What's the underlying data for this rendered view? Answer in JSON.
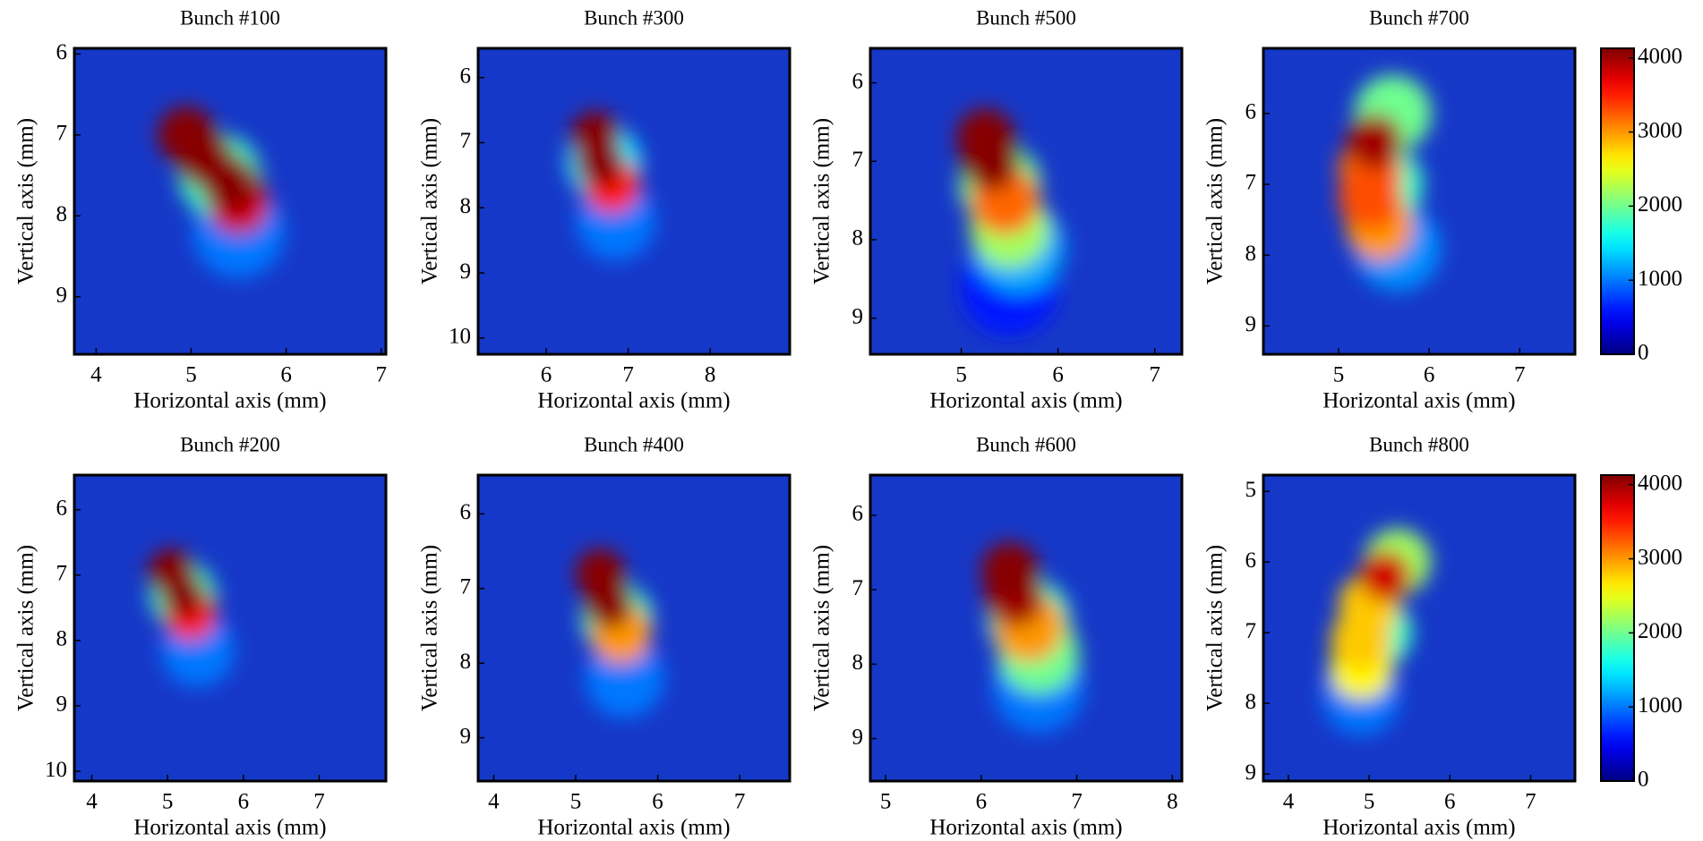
{
  "chart_data": [
    {
      "type": "heatmap",
      "title": "Bunch #100",
      "xlabel": "Horizontal axis (mm)",
      "ylabel": "Vertical axis (mm)",
      "xlim": [
        3.77,
        7.05
      ],
      "ylim": [
        5.93,
        9.71
      ],
      "y_reversed": true,
      "xticks": [
        4,
        5,
        6,
        7
      ],
      "yticks": [
        6,
        7,
        8,
        9
      ],
      "x": [
        5.5,
        5.3,
        5.5,
        4.95,
        5.15,
        5.4
      ],
      "y": [
        8.2,
        7.5,
        7.85,
        7.0,
        7.3,
        7.6
      ],
      "values": [
        1000,
        1800,
        3800,
        4100,
        4100,
        4100
      ],
      "clim": [
        0,
        4130
      ]
    },
    {
      "type": "heatmap",
      "title": "Bunch #300",
      "xlabel": "Horizontal axis (mm)",
      "ylabel": "Vertical axis (mm)",
      "xlim": [
        5.17,
        8.97
      ],
      "ylim": [
        5.55,
        10.25
      ],
      "y_reversed": true,
      "xticks": [
        6,
        7,
        8
      ],
      "yticks": [
        6,
        7,
        8,
        9,
        10
      ],
      "x": [
        6.85,
        6.7,
        6.8,
        6.6,
        6.65
      ],
      "y": [
        8.2,
        7.3,
        7.65,
        6.9,
        7.3
      ],
      "values": [
        1000,
        1500,
        3500,
        4100,
        4100
      ],
      "clim": [
        0,
        4130
      ]
    },
    {
      "type": "heatmap",
      "title": "Bunch #500",
      "xlabel": "Horizontal axis (mm)",
      "ylabel": "Vertical axis (mm)",
      "xlim": [
        4.06,
        7.28
      ],
      "ylim": [
        5.56,
        9.46
      ],
      "y_reversed": true,
      "xticks": [
        5,
        6,
        7
      ],
      "yticks": [
        6,
        7,
        8,
        9
      ],
      "x": [
        5.5,
        5.6,
        5.4,
        5.5,
        5.45,
        5.25,
        5.3
      ],
      "y": [
        8.6,
        8.1,
        7.3,
        7.85,
        7.5,
        6.7,
        7.0
      ],
      "values": [
        600,
        1200,
        2000,
        2200,
        3200,
        4100,
        4100
      ],
      "clim": [
        0,
        4130
      ]
    },
    {
      "type": "heatmap",
      "title": "Bunch #700",
      "xlabel": "Horizontal axis (mm)",
      "ylabel": "Vertical axis (mm)",
      "xlim": [
        4.17,
        7.61
      ],
      "ylim": [
        5.08,
        9.4
      ],
      "y_reversed": true,
      "xticks": [
        5,
        6,
        7
      ],
      "yticks": [
        6,
        7,
        8,
        9
      ],
      "x": [
        5.65,
        5.5,
        5.6,
        5.45,
        5.35,
        5.35,
        5.4
      ],
      "y": [
        7.9,
        7.0,
        6.0,
        7.6,
        6.8,
        7.2,
        6.4
      ],
      "values": [
        1100,
        1800,
        2000,
        3000,
        3200,
        3300,
        4000
      ],
      "clim": [
        0,
        4130
      ],
      "colorbar": {
        "ticks": [
          0,
          1000,
          2000,
          3000,
          4000
        ]
      }
    },
    {
      "type": "heatmap",
      "title": "Bunch #200",
      "xlabel": "Horizontal axis (mm)",
      "ylabel": "Vertical axis (mm)",
      "xlim": [
        3.77,
        7.88
      ],
      "ylim": [
        5.47,
        10.15
      ],
      "y_reversed": true,
      "xticks": [
        4,
        5,
        6,
        7
      ],
      "yticks": [
        6,
        7,
        8,
        9,
        10
      ],
      "x": [
        5.4,
        5.2,
        5.3,
        5.05,
        5.2
      ],
      "y": [
        8.15,
        7.3,
        7.6,
        6.95,
        7.3
      ],
      "values": [
        1000,
        1800,
        3500,
        4100,
        4100
      ],
      "clim": [
        0,
        4130
      ]
    },
    {
      "type": "heatmap",
      "title": "Bunch #400",
      "xlabel": "Horizontal axis (mm)",
      "ylabel": "Vertical axis (mm)",
      "xlim": [
        3.81,
        7.61
      ],
      "ylim": [
        5.48,
        9.58
      ],
      "y_reversed": true,
      "xticks": [
        4,
        5,
        6,
        7
      ],
      "yticks": [
        6,
        7,
        8,
        9
      ],
      "x": [
        5.6,
        5.5,
        5.55,
        5.3,
        5.4
      ],
      "y": [
        8.2,
        7.4,
        7.6,
        6.8,
        7.2
      ],
      "values": [
        1000,
        1800,
        3000,
        4100,
        4100
      ],
      "clim": [
        0,
        4130
      ]
    },
    {
      "type": "heatmap",
      "title": "Bunch #600",
      "xlabel": "Horizontal axis (mm)",
      "ylabel": "Vertical axis (mm)",
      "xlim": [
        4.84,
        8.1
      ],
      "ylim": [
        5.46,
        9.57
      ],
      "y_reversed": true,
      "xticks": [
        5,
        6,
        7,
        8
      ],
      "yticks": [
        6,
        7,
        8,
        9
      ],
      "x": [
        6.6,
        6.5,
        6.6,
        6.5,
        6.35,
        6.3
      ],
      "y": [
        8.3,
        7.4,
        7.85,
        7.5,
        7.1,
        6.75
      ],
      "values": [
        1000,
        1800,
        2000,
        3000,
        4000,
        4100
      ],
      "clim": [
        0,
        4130
      ]
    },
    {
      "type": "heatmap",
      "title": "Bunch #800",
      "xlabel": "Horizontal axis (mm)",
      "ylabel": "Vertical axis (mm)",
      "xlim": [
        3.69,
        7.55
      ],
      "ylim": [
        4.77,
        9.1
      ],
      "y_reversed": true,
      "xticks": [
        4,
        5,
        6,
        7
      ],
      "yticks": [
        5,
        6,
        7,
        8,
        9
      ],
      "x": [
        4.9,
        5.1,
        5.35,
        4.9,
        5.0,
        4.9,
        5.2
      ],
      "y": [
        7.9,
        7.0,
        6.0,
        7.5,
        6.6,
        7.1,
        6.2
      ],
      "values": [
        1000,
        1800,
        2200,
        2600,
        2800,
        2800,
        3800
      ],
      "clim": [
        0,
        4130
      ],
      "colorbar": {
        "ticks": [
          0,
          1000,
          2000,
          3000,
          4000
        ]
      }
    }
  ]
}
